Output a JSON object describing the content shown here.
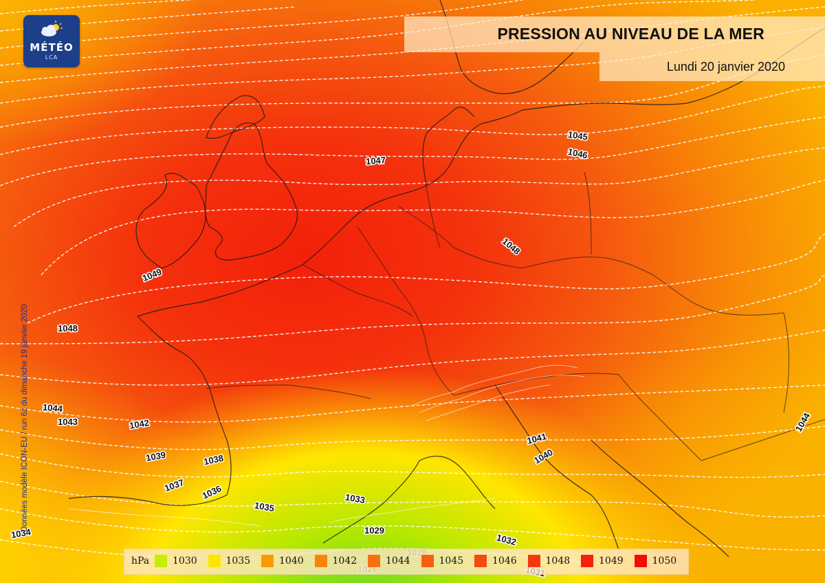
{
  "title": "PRESSION AU NIVEAU DE LA MER",
  "date": "Lundi 20 janvier 2020",
  "brand": {
    "name": "MÉTÉO",
    "sub": "LCA"
  },
  "credit": "Données modèle ICON-EU / run 6z du dimanche 19 janvier 2020",
  "legend": {
    "unit": "hPa",
    "levels": [
      {
        "value": "1030",
        "color": "#c6ee00"
      },
      {
        "value": "1035",
        "color": "#ffe400"
      },
      {
        "value": "1040",
        "color": "#fa9a00"
      },
      {
        "value": "1042",
        "color": "#f9840a"
      },
      {
        "value": "1044",
        "color": "#f87110"
      },
      {
        "value": "1045",
        "color": "#f65f12"
      },
      {
        "value": "1046",
        "color": "#f54a10"
      },
      {
        "value": "1048",
        "color": "#f4380e"
      },
      {
        "value": "1049",
        "color": "#f4220a"
      },
      {
        "value": "1050",
        "color": "#f40a06"
      }
    ]
  },
  "contour_labels": [
    "1047",
    "1045",
    "1046",
    "1048",
    "1049",
    "1048",
    "1044",
    "1043",
    "1042",
    "1039",
    "1038",
    "1037",
    "1036",
    "1035",
    "1033",
    "1029",
    "1041",
    "1040",
    "1044",
    "1034",
    "1032",
    "1031",
    "1028",
    "1026"
  ]
}
